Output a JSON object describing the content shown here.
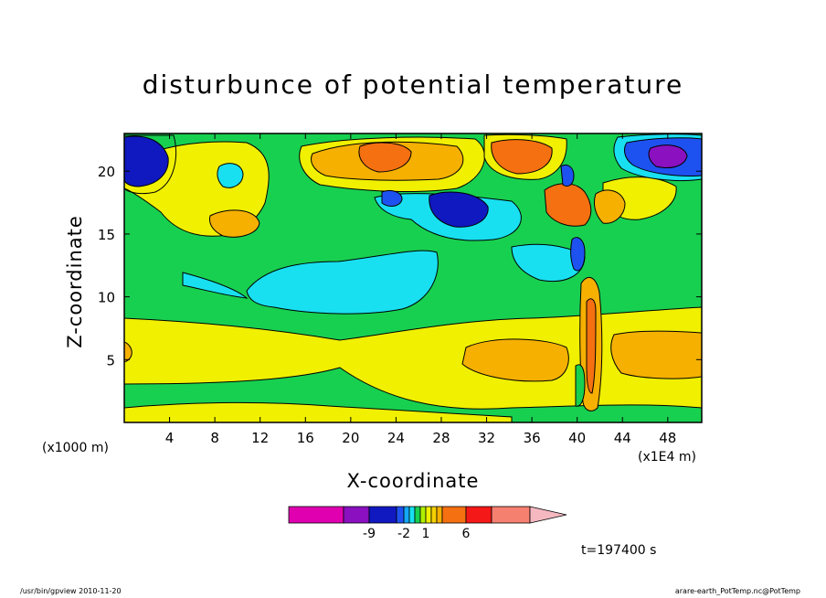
{
  "chart_data": {
    "type": "heatmap",
    "title": "disturbunce of potential temperature",
    "xlabel": "X-coordinate",
    "ylabel": "Z-coordinate",
    "x_unit_left": "(x1000 m)",
    "x_unit_right": "(x1E4 m)",
    "xlim": [
      0,
      51
    ],
    "ylim": [
      0,
      23
    ],
    "x_ticks": [
      4,
      8,
      12,
      16,
      20,
      24,
      28,
      32,
      36,
      40,
      44,
      48
    ],
    "y_ticks": [
      5,
      10,
      15,
      20
    ],
    "time_label": "t=197400 s",
    "colorbar": {
      "colors": [
        "#e000b0",
        "#8a10c0",
        "#1018c0",
        "#1e52f0",
        "#14a8f5",
        "#18e0f0",
        "#18d050",
        "#b0f000",
        "#f0f000",
        "#f5d000",
        "#f5b000",
        "#f57010",
        "#f51818",
        "#f58070",
        "#f5b8c0"
      ],
      "labels": [
        "-9",
        "-2",
        "1",
        "6"
      ]
    }
  },
  "footer": {
    "left": "/usr/bin/gpview   2010-11-20",
    "right": "arare-earth_PotTemp.nc@PotTemp"
  }
}
